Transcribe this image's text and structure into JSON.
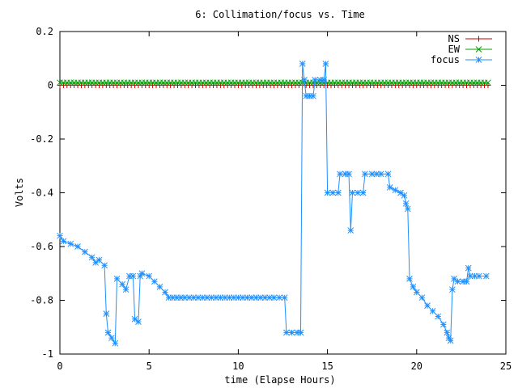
{
  "chart_data": {
    "type": "line",
    "title": "6: Collimation/focus vs. Time",
    "xlabel": "time (Elapse Hours)",
    "ylabel": "Volts",
    "xlim": [
      0,
      25
    ],
    "ylim": [
      -1,
      0.2
    ],
    "x_ticks": [
      "0",
      "5",
      "10",
      "15",
      "20",
      "25"
    ],
    "y_ticks": [
      "0.2",
      "0",
      "-0.2",
      "-0.4",
      "-0.6",
      "-0.8",
      "-1"
    ],
    "grid": false,
    "legend_position": "top-right",
    "series": [
      {
        "name": "NS",
        "color": "#cc0000",
        "marker": "plus",
        "points": [
          [
            0,
            0.0
          ],
          [
            24,
            0.0
          ]
        ],
        "marker_interval_hours": 0.2
      },
      {
        "name": "EW",
        "color": "#00a000",
        "marker": "cross",
        "points": [
          [
            0,
            0.01
          ],
          [
            24,
            0.01
          ]
        ],
        "marker_interval_hours": 0.2
      },
      {
        "name": "focus",
        "color": "#1e90ff",
        "marker": "star",
        "points": [
          [
            0.0,
            -0.56
          ],
          [
            0.2,
            -0.58
          ],
          [
            0.6,
            -0.59
          ],
          [
            1.0,
            -0.6
          ],
          [
            1.4,
            -0.62
          ],
          [
            1.8,
            -0.64
          ],
          [
            2.0,
            -0.66
          ],
          [
            2.2,
            -0.65
          ],
          [
            2.5,
            -0.67
          ],
          [
            2.6,
            -0.85
          ],
          [
            2.7,
            -0.92
          ],
          [
            2.9,
            -0.94
          ],
          [
            3.1,
            -0.96
          ],
          [
            3.2,
            -0.72
          ],
          [
            3.5,
            -0.74
          ],
          [
            3.7,
            -0.76
          ],
          [
            3.9,
            -0.71
          ],
          [
            4.1,
            -0.71
          ],
          [
            4.2,
            -0.87
          ],
          [
            4.4,
            -0.88
          ],
          [
            4.5,
            -0.71
          ],
          [
            4.6,
            -0.7
          ],
          [
            5.0,
            -0.71
          ],
          [
            5.3,
            -0.73
          ],
          [
            5.6,
            -0.75
          ],
          [
            5.9,
            -0.77
          ],
          [
            6.1,
            -0.79
          ],
          [
            7.0,
            -0.79
          ],
          [
            8.0,
            -0.79
          ],
          [
            9.0,
            -0.79
          ],
          [
            10.0,
            -0.79
          ],
          [
            11.0,
            -0.79
          ],
          [
            12.0,
            -0.79
          ],
          [
            12.6,
            -0.79
          ],
          [
            12.7,
            -0.92
          ],
          [
            13.0,
            -0.92
          ],
          [
            13.3,
            -0.92
          ],
          [
            13.5,
            -0.92
          ],
          [
            13.6,
            0.08
          ],
          [
            13.7,
            0.02
          ],
          [
            13.8,
            -0.04
          ],
          [
            14.0,
            -0.04
          ],
          [
            14.2,
            -0.04
          ],
          [
            14.3,
            0.02
          ],
          [
            14.6,
            0.02
          ],
          [
            14.8,
            0.02
          ],
          [
            14.9,
            0.08
          ],
          [
            15.0,
            -0.4
          ],
          [
            15.3,
            -0.4
          ],
          [
            15.6,
            -0.4
          ],
          [
            15.7,
            -0.33
          ],
          [
            16.0,
            -0.33
          ],
          [
            16.2,
            -0.33
          ],
          [
            16.3,
            -0.54
          ],
          [
            16.4,
            -0.4
          ],
          [
            16.7,
            -0.4
          ],
          [
            17.0,
            -0.4
          ],
          [
            17.1,
            -0.33
          ],
          [
            17.5,
            -0.33
          ],
          [
            18.0,
            -0.33
          ],
          [
            18.4,
            -0.33
          ],
          [
            18.5,
            -0.38
          ],
          [
            18.8,
            -0.39
          ],
          [
            19.1,
            -0.4
          ],
          [
            19.3,
            -0.41
          ],
          [
            19.4,
            -0.44
          ],
          [
            19.5,
            -0.46
          ],
          [
            19.6,
            -0.72
          ],
          [
            19.8,
            -0.75
          ],
          [
            20.0,
            -0.77
          ],
          [
            20.3,
            -0.79
          ],
          [
            20.6,
            -0.82
          ],
          [
            20.9,
            -0.84
          ],
          [
            21.2,
            -0.86
          ],
          [
            21.5,
            -0.89
          ],
          [
            21.7,
            -0.92
          ],
          [
            21.8,
            -0.94
          ],
          [
            21.9,
            -0.95
          ],
          [
            22.0,
            -0.76
          ],
          [
            22.1,
            -0.72
          ],
          [
            22.3,
            -0.73
          ],
          [
            22.6,
            -0.73
          ],
          [
            22.8,
            -0.73
          ],
          [
            22.9,
            -0.68
          ],
          [
            23.0,
            -0.71
          ],
          [
            23.5,
            -0.71
          ],
          [
            23.9,
            -0.71
          ]
        ]
      }
    ]
  }
}
